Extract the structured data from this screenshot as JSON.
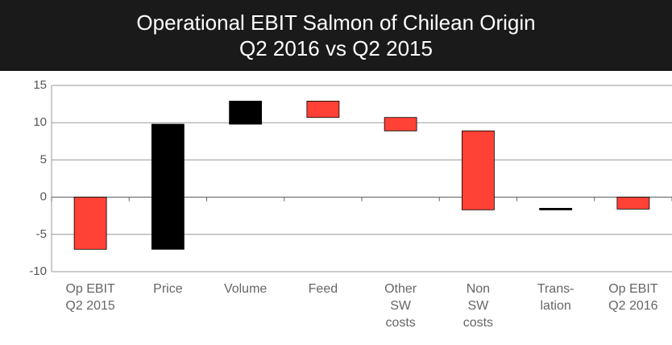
{
  "chart_data": {
    "type": "waterfall",
    "title": "Operational EBIT Salmon of Chilean Origin",
    "subtitle": "Q2 2016 vs Q2 2015",
    "categories": [
      "Op EBIT\nQ2 2015",
      "Price",
      "Volume",
      "Feed",
      "Other\nSW\ncosts",
      "Non\nSW\ncosts",
      "Trans-\nlation",
      "Op EBIT\nQ2 2016"
    ],
    "values": [
      -7,
      16.8,
      3.1,
      -2.2,
      -1.8,
      -10.6,
      0.1,
      -1.6
    ],
    "totals": [
      7
    ],
    "increase_color": "#000000",
    "decrease_color": "#ff4136",
    "ylim": [
      -10,
      15
    ],
    "yticks": [
      -10,
      -5,
      0,
      5,
      10,
      15
    ],
    "grid": true
  }
}
